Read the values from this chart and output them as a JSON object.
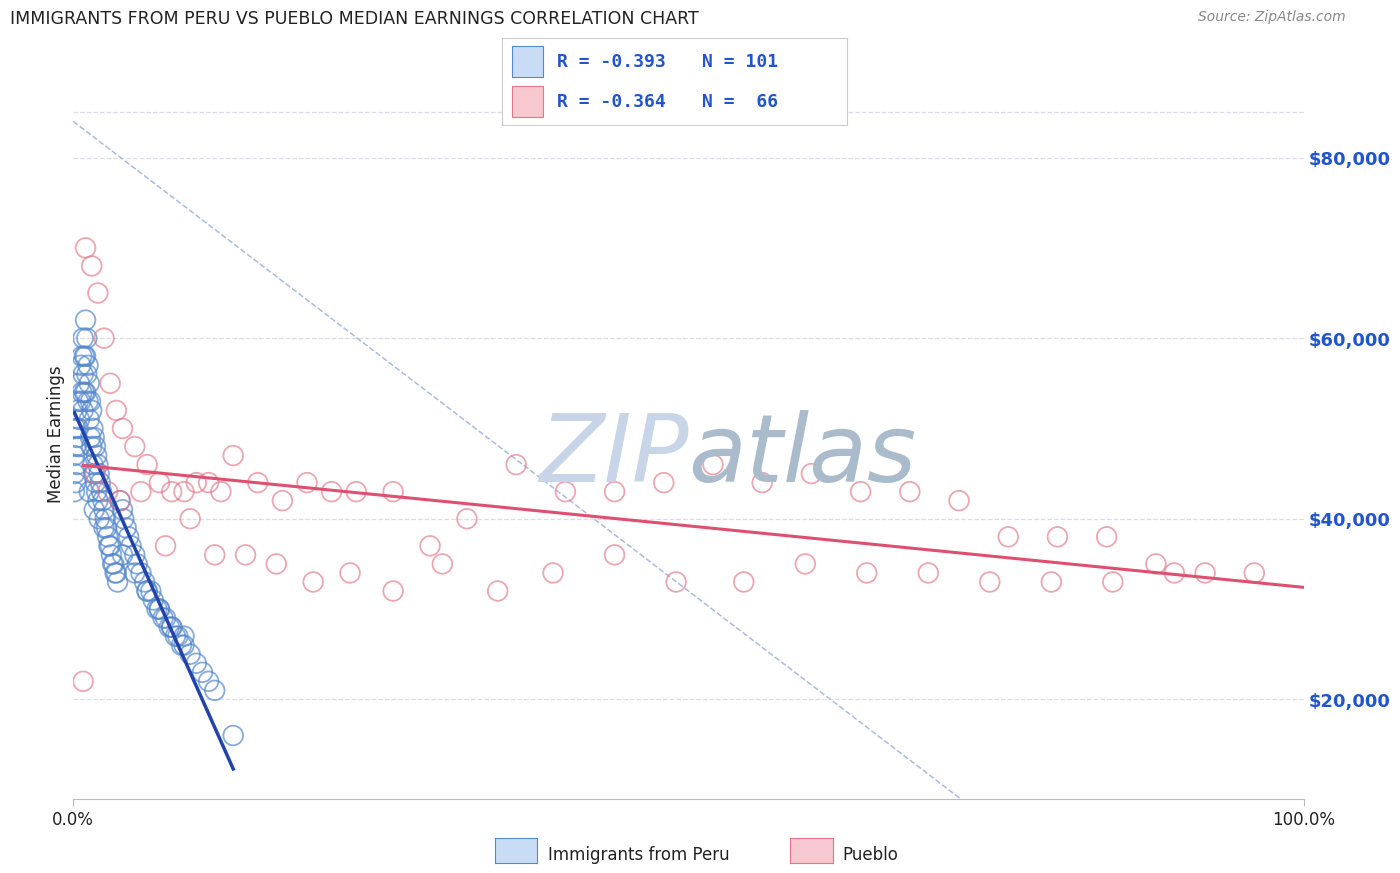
{
  "title": "IMMIGRANTS FROM PERU VS PUEBLO MEDIAN EARNINGS CORRELATION CHART",
  "source": "Source: ZipAtlas.com",
  "ylabel": "Median Earnings",
  "y_tick_labels": [
    "$20,000",
    "$40,000",
    "$60,000",
    "$80,000"
  ],
  "y_tick_values": [
    20000,
    40000,
    60000,
    80000
  ],
  "xlim": [
    0.0,
    1.0
  ],
  "ylim": [
    9000,
    90000
  ],
  "legend_line1_r": "R = -0.393",
  "legend_line1_n": "N = 101",
  "legend_line2_r": "R = -0.364",
  "legend_line2_n": "N =  66",
  "blue_face": "#C8DCF5",
  "blue_edge": "#5588CC",
  "pink_face": "#F8C8D0",
  "pink_edge": "#E07888",
  "blue_line_color": "#2244AA",
  "pink_line_color": "#DD5070",
  "dashed_line_color": "#AABBDD",
  "grid_color": "#DADDE8",
  "watermark_zip_color": "#C8D4E8",
  "watermark_atlas_color": "#AABBCC",
  "title_color": "#222222",
  "source_color": "#888888",
  "ylabel_color": "#222222",
  "right_tick_color": "#2255CC",
  "bottom_tick_color": "#222222",
  "legend_text_color": "#2255CC",
  "legend_border_color": "#CCCCCC",
  "blue_scatter_x": [
    0.001,
    0.001,
    0.001,
    0.002,
    0.002,
    0.002,
    0.003,
    0.003,
    0.003,
    0.004,
    0.004,
    0.005,
    0.005,
    0.005,
    0.006,
    0.006,
    0.007,
    0.007,
    0.008,
    0.008,
    0.008,
    0.009,
    0.009,
    0.01,
    0.01,
    0.01,
    0.011,
    0.011,
    0.012,
    0.012,
    0.013,
    0.013,
    0.014,
    0.014,
    0.015,
    0.015,
    0.016,
    0.016,
    0.017,
    0.017,
    0.018,
    0.018,
    0.019,
    0.019,
    0.02,
    0.02,
    0.021,
    0.022,
    0.023,
    0.024,
    0.025,
    0.026,
    0.027,
    0.028,
    0.029,
    0.03,
    0.031,
    0.032,
    0.033,
    0.034,
    0.035,
    0.036,
    0.038,
    0.04,
    0.041,
    0.043,
    0.045,
    0.047,
    0.05,
    0.052,
    0.055,
    0.058,
    0.06,
    0.063,
    0.065,
    0.068,
    0.07,
    0.073,
    0.075,
    0.078,
    0.08,
    0.083,
    0.085,
    0.088,
    0.09,
    0.095,
    0.1,
    0.105,
    0.11,
    0.115,
    0.013,
    0.017,
    0.021,
    0.025,
    0.04,
    0.05,
    0.06,
    0.07,
    0.08,
    0.09,
    0.13
  ],
  "blue_scatter_y": [
    47000,
    45000,
    43000,
    50000,
    48000,
    44000,
    52000,
    49000,
    46000,
    53000,
    50000,
    55000,
    51000,
    48000,
    57000,
    53000,
    58000,
    54000,
    60000,
    56000,
    52000,
    58000,
    54000,
    62000,
    58000,
    54000,
    60000,
    56000,
    57000,
    53000,
    55000,
    51000,
    53000,
    49000,
    52000,
    48000,
    50000,
    46000,
    49000,
    45000,
    48000,
    44000,
    47000,
    43000,
    46000,
    42000,
    45000,
    44000,
    43000,
    42000,
    41000,
    40000,
    39000,
    38000,
    37000,
    37000,
    36000,
    35000,
    35000,
    34000,
    34000,
    33000,
    42000,
    41000,
    40000,
    39000,
    38000,
    37000,
    36000,
    35000,
    34000,
    33000,
    32000,
    32000,
    31000,
    30000,
    30000,
    29000,
    29000,
    28000,
    28000,
    27000,
    27000,
    26000,
    26000,
    25000,
    24000,
    23000,
    22000,
    21000,
    43000,
    41000,
    40000,
    39000,
    36000,
    34000,
    32000,
    30000,
    28000,
    27000,
    16000
  ],
  "pink_scatter_x": [
    0.01,
    0.015,
    0.02,
    0.025,
    0.03,
    0.035,
    0.04,
    0.05,
    0.06,
    0.07,
    0.08,
    0.09,
    0.1,
    0.11,
    0.12,
    0.13,
    0.15,
    0.17,
    0.19,
    0.21,
    0.23,
    0.26,
    0.29,
    0.32,
    0.36,
    0.4,
    0.44,
    0.48,
    0.52,
    0.56,
    0.6,
    0.64,
    0.68,
    0.72,
    0.76,
    0.8,
    0.84,
    0.88,
    0.92,
    0.96,
    0.008,
    0.018,
    0.028,
    0.038,
    0.055,
    0.075,
    0.095,
    0.115,
    0.14,
    0.165,
    0.195,
    0.225,
    0.26,
    0.3,
    0.345,
    0.39,
    0.44,
    0.49,
    0.545,
    0.595,
    0.645,
    0.695,
    0.745,
    0.795,
    0.845,
    0.895
  ],
  "pink_scatter_y": [
    70000,
    68000,
    65000,
    60000,
    55000,
    52000,
    50000,
    48000,
    46000,
    44000,
    43000,
    43000,
    44000,
    44000,
    43000,
    47000,
    44000,
    42000,
    44000,
    43000,
    43000,
    43000,
    37000,
    40000,
    46000,
    43000,
    43000,
    44000,
    46000,
    44000,
    45000,
    43000,
    43000,
    42000,
    38000,
    38000,
    38000,
    35000,
    34000,
    34000,
    22000,
    45000,
    43000,
    42000,
    43000,
    37000,
    40000,
    36000,
    36000,
    35000,
    33000,
    34000,
    32000,
    35000,
    32000,
    34000,
    36000,
    33000,
    33000,
    35000,
    34000,
    34000,
    33000,
    33000,
    33000,
    34000
  ]
}
